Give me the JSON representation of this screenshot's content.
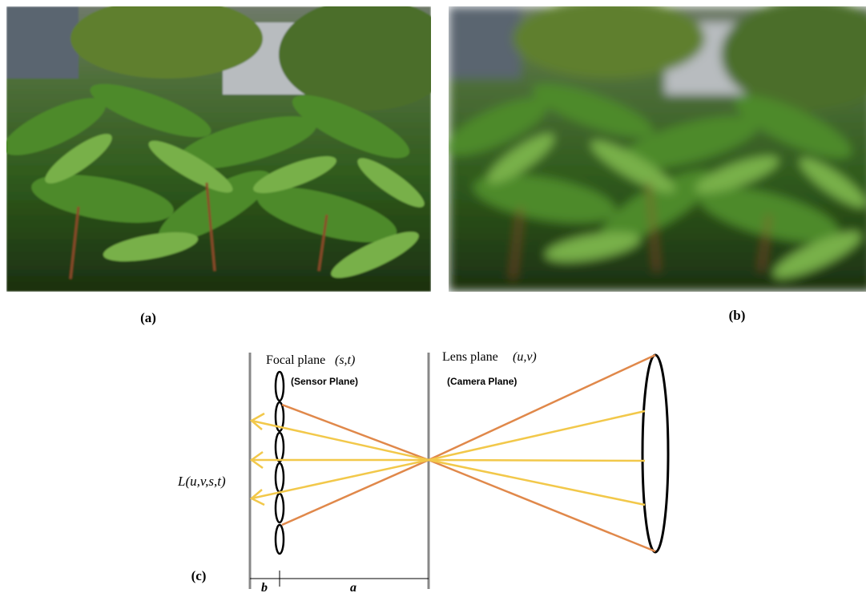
{
  "figure": {
    "panels": [
      {
        "label": "(a)"
      },
      {
        "label": "(b)"
      },
      {
        "label": "(c)"
      }
    ],
    "diagram": {
      "focal_plane": "Focal plane",
      "focal_coords": "(s,t)",
      "sensor_plane": "(Sensor Plane)",
      "lens_plane": "Lens plane",
      "lens_coords": "(u,v)",
      "camera_plane": "(Camera Plane)",
      "light_field": "L(u,v,s,t)",
      "dist_b": "b",
      "dist_a": "a"
    }
  }
}
